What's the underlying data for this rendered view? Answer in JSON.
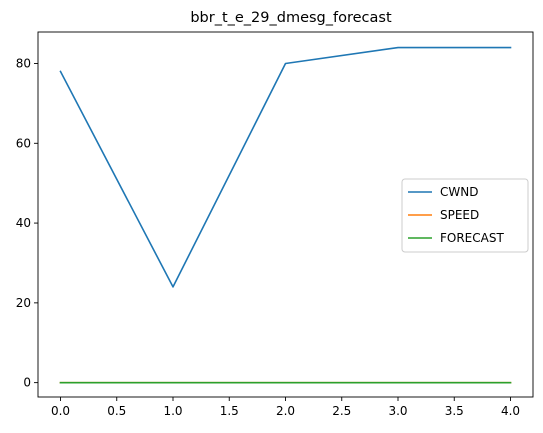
{
  "chart_data": {
    "type": "line",
    "title": "bbr_t_e_29_dmesg_forecast",
    "xlabel": "",
    "ylabel": "",
    "x": [
      0,
      1,
      2,
      3,
      4
    ],
    "xlim": [
      -0.2,
      4.2
    ],
    "ylim": [
      -3.6,
      87.9
    ],
    "xticks": [
      0.0,
      0.5,
      1.0,
      1.5,
      2.0,
      2.5,
      3.0,
      3.5,
      4.0
    ],
    "xtick_labels": [
      "0.0",
      "0.5",
      "1.0",
      "1.5",
      "2.0",
      "2.5",
      "3.0",
      "3.5",
      "4.0"
    ],
    "yticks": [
      0,
      20,
      40,
      60,
      80
    ],
    "ytick_labels": [
      "0",
      "20",
      "40",
      "60",
      "80"
    ],
    "grid": false,
    "legend_position": "center-right",
    "series": [
      {
        "name": "CWND",
        "color": "#1f77b4",
        "values": [
          78,
          24,
          80,
          84,
          84
        ]
      },
      {
        "name": "SPEED",
        "color": "#ff7f0e",
        "values": [
          0,
          0,
          0,
          0,
          0
        ]
      },
      {
        "name": "FORECAST",
        "color": "#2ca02c",
        "values": [
          0,
          0,
          0,
          0,
          0
        ]
      }
    ]
  }
}
